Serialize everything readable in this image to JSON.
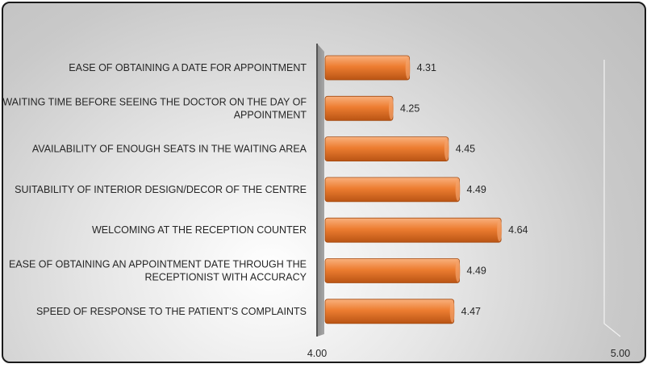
{
  "chart_data": {
    "type": "bar",
    "orientation": "horizontal",
    "categories": [
      "EASE OF OBTAINING A DATE FOR APPOINTMENT",
      "WAITING TIME BEFORE SEEING THE DOCTOR ON THE DAY OF APPOINTMENT",
      "AVAILABILITY OF ENOUGH SEATS IN THE WAITING AREA",
      "SUITABILITY OF INTERIOR DESIGN/DECOR OF THE CENTRE",
      "WELCOMING AT THE RECEPTION COUNTER",
      "EASE OF OBTAINING AN APPOINTMENT DATE THROUGH THE RECEPTIONIST WITH ACCURACY",
      "SPEED OF RESPONSE TO THE PATIENT’S COMPLAINTS"
    ],
    "values": [
      4.31,
      4.25,
      4.45,
      4.49,
      4.64,
      4.49,
      4.47
    ],
    "value_labels": [
      "4.31",
      "4.25",
      "4.45",
      "4.49",
      "4.64",
      "4.49",
      "4.47"
    ],
    "xlim": [
      4.0,
      5.0
    ],
    "x_tick_labels": [
      "4.00",
      "5.00"
    ],
    "title": "",
    "xlabel": "",
    "ylabel": "",
    "bar_color": "#ed7d31",
    "grid": false,
    "legend": "none"
  }
}
